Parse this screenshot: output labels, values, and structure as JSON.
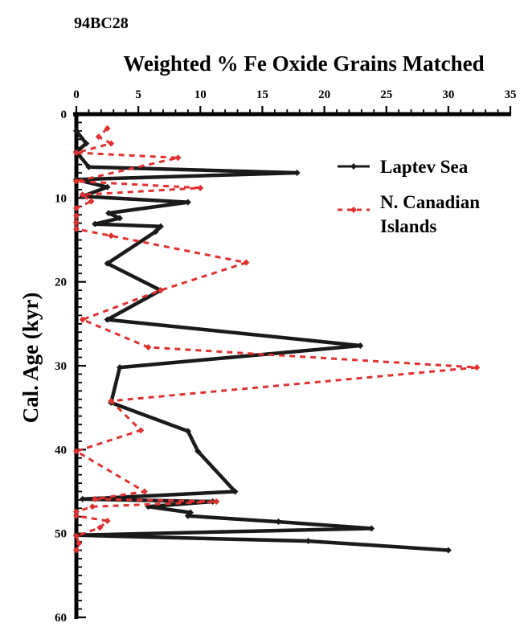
{
  "chart_data": {
    "type": "line",
    "core_label": "94BC28",
    "title": "Weighted % Fe Oxide Grains Matched",
    "xlabel": "Weighted % Fe Oxide Grains Matched",
    "ylabel": "Cal. Age (kyr)",
    "xlim": [
      0,
      35
    ],
    "ylim": [
      0,
      60
    ],
    "y_inverted": true,
    "x_axis_position": "top",
    "xticks": [
      0,
      5,
      10,
      15,
      20,
      25,
      30,
      35
    ],
    "yticks": [
      0,
      10,
      20,
      30,
      40,
      50,
      60
    ],
    "legend_position": "top-right",
    "series": [
      {
        "name": "Laptev Sea",
        "color": "#1a1a1a",
        "style": "solid",
        "x": [
          0,
          0.8,
          0,
          1,
          17.8,
          0,
          2.5,
          0.5,
          9,
          2.6,
          3.5,
          1.5,
          6.8,
          6.4,
          2.5,
          6.8,
          2.5,
          22.9,
          3.5,
          2.8,
          9,
          9.8,
          12.8,
          0.5,
          11,
          5.8,
          9.2,
          9,
          16.3,
          23.8,
          0,
          18.7,
          30
        ],
        "y": [
          2,
          3.5,
          4.5,
          6.3,
          7,
          7.8,
          8.7,
          9.8,
          10.5,
          11.8,
          12.4,
          13.1,
          13.4,
          14,
          17.8,
          21,
          24.5,
          27.6,
          30.2,
          34.4,
          37.8,
          40.2,
          45,
          45.9,
          46.2,
          46.8,
          47.5,
          47.9,
          48.6,
          49.4,
          50.2,
          50.9,
          52
        ]
      },
      {
        "name": "N. Canadian Islands",
        "color": "#e03030",
        "style": "dashed",
        "x": [
          2.5,
          1.8,
          2.8,
          0,
          8.2,
          0,
          10,
          0.5,
          1.2,
          0,
          0,
          0,
          0,
          2.8,
          13.7,
          6.8,
          0.5,
          5.8,
          32.3,
          2.8,
          5.2,
          0,
          5.5,
          1.5,
          11.3,
          1.3,
          0,
          0,
          2.5,
          1.9,
          0,
          0.2,
          0
        ],
        "y": [
          1.7,
          2.7,
          3.5,
          4.6,
          5.2,
          8,
          8.8,
          9.6,
          10.4,
          11.2,
          12.1,
          12.9,
          13.7,
          14.5,
          17.7,
          21,
          24.5,
          27.8,
          30.2,
          34.2,
          37.7,
          40.2,
          45,
          45.9,
          46.2,
          46.8,
          47.4,
          47.9,
          48.5,
          49.3,
          50.3,
          51.2,
          52
        ]
      }
    ]
  }
}
